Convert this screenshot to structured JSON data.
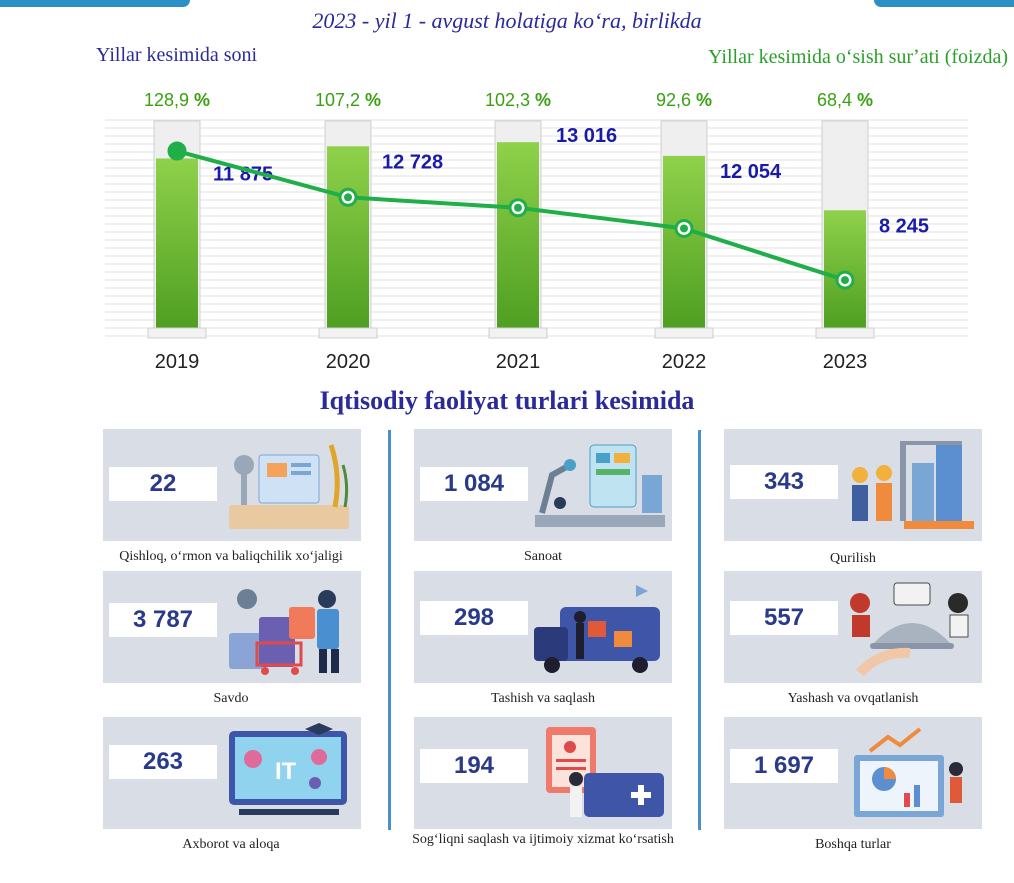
{
  "header": {
    "subtitle": "2023 - yil 1 - avgust holatiga koʻra, birlikda",
    "left_label": "Yillar kesimida soni",
    "right_label": "Yillar kesimida oʻsish surʼati (foizda)"
  },
  "chart_data": {
    "type": "bar",
    "categories": [
      "2019",
      "2020",
      "2021",
      "2022",
      "2023"
    ],
    "series": [
      {
        "values": [
          11875,
          12728,
          13016,
          12054,
          8245
        ],
        "labels": [
          "11 875",
          "12 728",
          "13 016",
          "12 054",
          "8 245"
        ]
      },
      {
        "type": "line",
        "values": [
          128.9,
          107.2,
          102.3,
          92.6,
          68.4
        ],
        "labels": [
          "128,9",
          "107,2",
          "102,3",
          "92,6",
          "68,4"
        ]
      }
    ],
    "percent_sign": "%",
    "colors": {
      "bar": "#6cbf2e",
      "line": "#1fae48",
      "values": "#1a1aa8",
      "percent": "#3aa012"
    }
  },
  "section_title": "Iqtisodiy faoliyat turlari kesimida",
  "sectors": [
    {
      "value": "22",
      "caption": "Qishloq, oʻrmon va baliqchilik xoʻjaligi",
      "icon": "agriculture-lab-icon"
    },
    {
      "value": "1 084",
      "caption": "Sanoat",
      "icon": "factory-robot-icon"
    },
    {
      "value": "343",
      "caption": "Qurilish",
      "icon": "construction-workers-icon"
    },
    {
      "value": "3 787",
      "caption": "Savdo",
      "icon": "shopping-icon"
    },
    {
      "value": "298",
      "caption": "Tashish va saqlash",
      "icon": "delivery-truck-icon"
    },
    {
      "value": "557",
      "caption": "Yashash va ovqatlanish",
      "icon": "food-service-icon"
    },
    {
      "value": "263",
      "caption": "Axborot va aloqa",
      "icon": "it-monitor-icon"
    },
    {
      "value": "194",
      "caption": "Sogʻliqni saqlash va ijtimoiy xizmat koʻrsatish",
      "icon": "health-card-icon"
    },
    {
      "value": "1 697",
      "caption": "Boshqa turlar",
      "icon": "analytics-board-icon"
    }
  ]
}
